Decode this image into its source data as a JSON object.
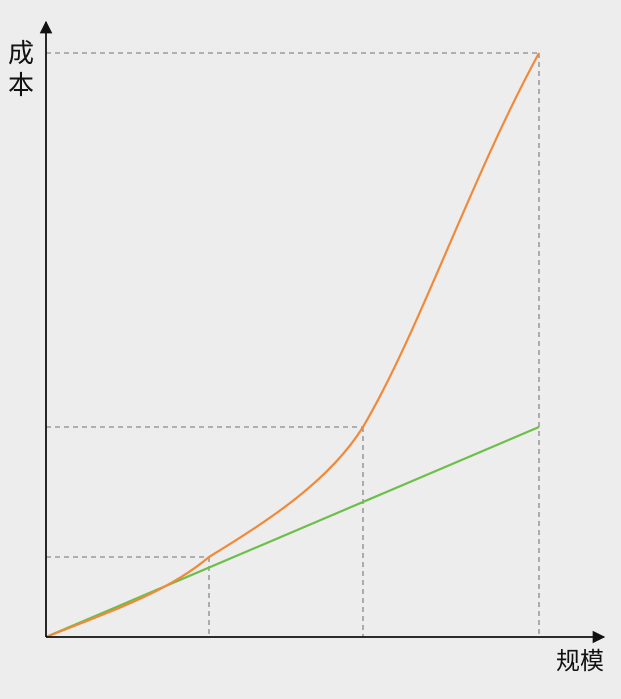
{
  "axes": {
    "y_label_chars": [
      "成",
      "本"
    ],
    "x_label": "规模"
  },
  "colors": {
    "background": "#ededed",
    "axis": "#111111",
    "guide": "#8a8a8a",
    "curve": "#f08a3a",
    "line": "#6cbf4a"
  }
}
